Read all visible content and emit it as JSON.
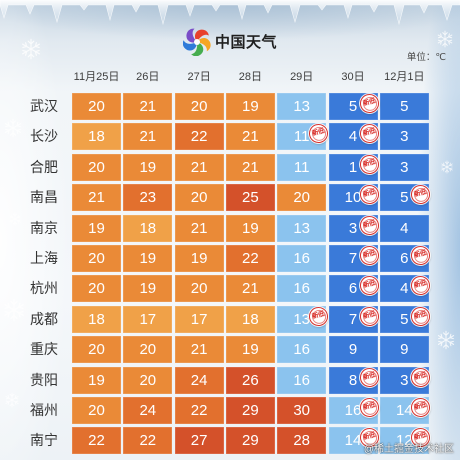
{
  "brand": {
    "name": "中国天气",
    "logo_icon": "china-weather-swirl-icon",
    "logo_colors": [
      "#e8412c",
      "#f6a623",
      "#46ad4f",
      "#2f7bd9",
      "#7a4dc8"
    ]
  },
  "watermark": "@稀土掘金技术社区",
  "colors": {
    "deep_blue": "#3a7ad9",
    "light_blue": "#8bc3ee",
    "light_orange": "#f0a148",
    "orange": "#ea8a37",
    "dark_orange": "#e2702e",
    "red_orange": "#d4512a",
    "badge_red": "#d8302b",
    "cell_text": "#ffffff",
    "label_text": "#333333"
  },
  "chart_data": {
    "type": "heatmap",
    "unit_label": "单位：℃",
    "columns": [
      "11月25日",
      "26日",
      "27日",
      "28日",
      "29日",
      "30日",
      "12月1日"
    ],
    "rows": [
      "武汉",
      "长沙",
      "合肥",
      "南昌",
      "南京",
      "上海",
      "杭州",
      "成都",
      "重庆",
      "贵阳",
      "福州",
      "南宁"
    ],
    "values": [
      [
        20,
        21,
        20,
        19,
        13,
        5,
        5
      ],
      [
        18,
        21,
        22,
        21,
        11,
        4,
        3
      ],
      [
        20,
        19,
        21,
        21,
        11,
        1,
        3
      ],
      [
        21,
        23,
        20,
        25,
        20,
        10,
        5
      ],
      [
        19,
        18,
        21,
        19,
        13,
        3,
        4
      ],
      [
        20,
        19,
        19,
        22,
        16,
        7,
        6
      ],
      [
        20,
        19,
        20,
        21,
        16,
        6,
        4
      ],
      [
        18,
        17,
        17,
        18,
        13,
        7,
        5
      ],
      [
        20,
        20,
        21,
        19,
        16,
        9,
        9
      ],
      [
        19,
        20,
        24,
        26,
        16,
        8,
        3
      ],
      [
        20,
        24,
        22,
        29,
        30,
        16,
        14
      ],
      [
        22,
        22,
        27,
        29,
        28,
        14,
        12
      ]
    ],
    "badge_label": "新低",
    "new_low": [
      [
        false,
        false,
        false,
        false,
        false,
        true,
        false
      ],
      [
        false,
        false,
        false,
        false,
        true,
        true,
        false
      ],
      [
        false,
        false,
        false,
        false,
        false,
        true,
        false
      ],
      [
        false,
        false,
        false,
        false,
        false,
        true,
        true
      ],
      [
        false,
        false,
        false,
        false,
        false,
        true,
        false
      ],
      [
        false,
        false,
        false,
        false,
        false,
        true,
        true
      ],
      [
        false,
        false,
        false,
        false,
        false,
        true,
        true
      ],
      [
        false,
        false,
        false,
        false,
        true,
        true,
        true
      ],
      [
        false,
        false,
        false,
        false,
        false,
        false,
        false
      ],
      [
        false,
        false,
        false,
        false,
        false,
        true,
        true
      ],
      [
        false,
        false,
        false,
        false,
        false,
        true,
        true
      ],
      [
        false,
        false,
        false,
        false,
        false,
        true,
        true
      ]
    ]
  }
}
